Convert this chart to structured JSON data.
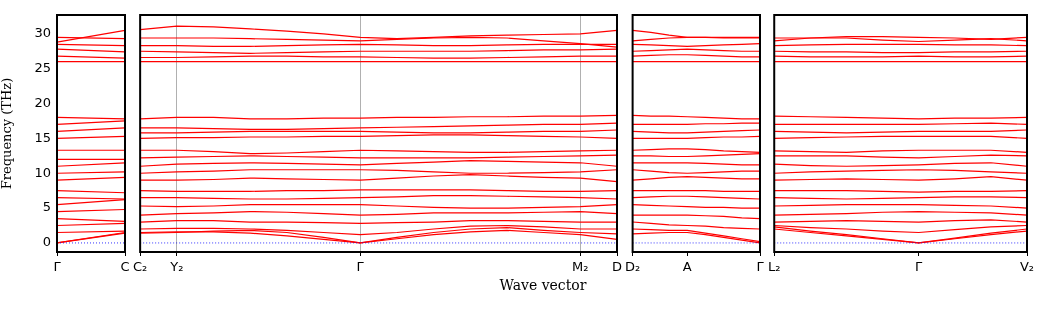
{
  "chart_data": [
    {
      "type": "line",
      "ylabel": "Frequency (THz)",
      "ylim": [
        -1.3,
        32.7
      ],
      "yticks": [
        0,
        5,
        10,
        15,
        20,
        25,
        30
      ],
      "ref_lines": [
        {
          "axis": "y",
          "value": 0,
          "color": "#0000ff",
          "line_style": "dotted"
        }
      ],
      "categories": [
        "Γ",
        "C"
      ],
      "series": [
        {
          "color": "#ff0000",
          "values": [
            0,
            1.5
          ]
        },
        {
          "color": "#ff0000",
          "values": [
            0,
            1.4
          ]
        },
        {
          "color": "#ff0000",
          "values": [
            1.5,
            1.7
          ]
        },
        {
          "color": "#ff0000",
          "values": [
            2.5,
            2.8
          ]
        },
        {
          "color": "#ff0000",
          "values": [
            3.5,
            3.1
          ]
        },
        {
          "color": "#ff0000",
          "values": [
            4.5,
            4.8
          ]
        },
        {
          "color": "#ff0000",
          "values": [
            5.5,
            6.2
          ]
        },
        {
          "color": "#ff0000",
          "values": [
            6.5,
            6.3
          ]
        },
        {
          "color": "#ff0000",
          "values": [
            7.5,
            7.2
          ]
        },
        {
          "color": "#ff0000",
          "values": [
            9.0,
            9.4
          ]
        },
        {
          "color": "#ff0000",
          "values": [
            10.0,
            10.2
          ]
        },
        {
          "color": "#ff0000",
          "values": [
            11.0,
            11.5
          ]
        },
        {
          "color": "#ff0000",
          "values": [
            12.0,
            12.0
          ]
        },
        {
          "color": "#ff0000",
          "values": [
            13.3,
            13.3
          ]
        },
        {
          "color": "#ff0000",
          "values": [
            15.0,
            15.3
          ]
        },
        {
          "color": "#ff0000",
          "values": [
            16.0,
            16.5
          ]
        },
        {
          "color": "#ff0000",
          "values": [
            17.0,
            17.5
          ]
        },
        {
          "color": "#ff0000",
          "values": [
            18.0,
            17.8
          ]
        },
        {
          "color": "#ff0000",
          "values": [
            26.0,
            26.0
          ]
        },
        {
          "color": "#ff0000",
          "values": [
            26.8,
            26.5
          ]
        },
        {
          "color": "#ff0000",
          "values": [
            27.8,
            27.4
          ]
        },
        {
          "color": "#ff0000",
          "values": [
            28.5,
            28.3
          ]
        },
        {
          "color": "#ff0000",
          "values": [
            29.5,
            29.3
          ]
        },
        {
          "color": "#ff0000",
          "values": [
            28.8,
            30.5
          ]
        }
      ]
    },
    {
      "type": "line",
      "xlabel": "Wave vector",
      "ylim": [
        -1.3,
        32.7
      ],
      "yticks": [
        0,
        5,
        10,
        15,
        20,
        25,
        30
      ],
      "tick_labels": "x",
      "grid": "x",
      "ref_lines": [
        {
          "axis": "y",
          "value": 0,
          "color": "#0000ff",
          "line_style": "dotted"
        }
      ],
      "categories": [
        "C₂",
        "Y₂",
        null,
        null,
        null,
        null,
        "Γ",
        null,
        null,
        null,
        null,
        null,
        "M₂",
        "D"
      ],
      "series": [
        {
          "color": "#ff0000",
          "values": [
            1.5,
            1.6,
            1.6,
            1.4,
            1.0,
            0.5,
            0,
            0.6,
            1.2,
            1.6,
            1.8,
            1.5,
            1.2,
            0.5
          ]
        },
        {
          "color": "#ff0000",
          "values": [
            1.4,
            1.5,
            1.7,
            1.8,
            1.5,
            0.8,
            0,
            0.8,
            1.5,
            2.0,
            2.2,
            1.8,
            1.5,
            1.3
          ]
        },
        {
          "color": "#ff0000",
          "values": [
            2.0,
            2.1,
            2.1,
            2.0,
            1.8,
            1.5,
            1.2,
            1.5,
            2.0,
            2.4,
            2.5,
            2.3,
            2.0,
            2.0
          ]
        },
        {
          "color": "#ff0000",
          "values": [
            3.0,
            3.2,
            3.2,
            3.0,
            3.0,
            2.9,
            2.8,
            2.9,
            3.0,
            3.2,
            3.2,
            3.1,
            3.0,
            3.0
          ]
        },
        {
          "color": "#ff0000",
          "values": [
            4.0,
            4.2,
            4.3,
            4.5,
            4.4,
            4.2,
            4.0,
            4.1,
            4.3,
            4.3,
            4.3,
            4.4,
            4.5,
            4.2
          ]
        },
        {
          "color": "#ff0000",
          "values": [
            5.3,
            5.2,
            5.3,
            5.5,
            5.5,
            5.5,
            5.5,
            5.3,
            5.1,
            5.0,
            5.0,
            5.1,
            5.2,
            5.5
          ]
        },
        {
          "color": "#ff0000",
          "values": [
            6.5,
            6.5,
            6.4,
            6.3,
            6.3,
            6.4,
            6.5,
            6.6,
            6.8,
            6.8,
            6.7,
            6.6,
            6.5,
            6.3
          ]
        },
        {
          "color": "#ff0000",
          "values": [
            7.5,
            7.4,
            7.4,
            7.4,
            7.5,
            7.5,
            7.6,
            7.6,
            7.6,
            7.6,
            7.5,
            7.4,
            7.4,
            7.5
          ]
        },
        {
          "color": "#ff0000",
          "values": [
            9.0,
            9.0,
            9.1,
            9.3,
            9.2,
            9.1,
            9.0,
            9.3,
            9.6,
            9.8,
            9.6,
            9.4,
            9.3,
            8.8
          ]
        },
        {
          "color": "#ff0000",
          "values": [
            10.0,
            10.2,
            10.3,
            10.5,
            10.5,
            10.5,
            10.5,
            10.4,
            10.2,
            10.0,
            10.0,
            10.1,
            10.2,
            10.5
          ]
        },
        {
          "color": "#ff0000",
          "values": [
            11.0,
            11.3,
            11.4,
            11.5,
            11.4,
            11.3,
            11.2,
            11.4,
            11.6,
            11.8,
            11.7,
            11.6,
            11.5,
            11.0
          ]
        },
        {
          "color": "#ff0000",
          "values": [
            12.2,
            12.3,
            12.4,
            12.5,
            12.4,
            12.3,
            12.2,
            12.2,
            12.2,
            12.2,
            12.3,
            12.4,
            12.5,
            12.6
          ]
        },
        {
          "color": "#ff0000",
          "values": [
            13.3,
            13.3,
            13.1,
            12.8,
            12.9,
            13.1,
            13.3,
            13.2,
            13.1,
            13.0,
            13.0,
            13.1,
            13.2,
            13.3
          ]
        },
        {
          "color": "#ff0000",
          "values": [
            15.0,
            15.1,
            15.1,
            15.2,
            15.2,
            15.3,
            15.3,
            15.4,
            15.5,
            15.5,
            15.4,
            15.3,
            15.2,
            15.0
          ]
        },
        {
          "color": "#ff0000",
          "values": [
            15.8,
            15.8,
            15.9,
            16.0,
            16.0,
            16.0,
            16.0,
            15.9,
            15.8,
            15.8,
            15.9,
            16.0,
            16.0,
            16.2
          ]
        },
        {
          "color": "#ff0000",
          "values": [
            16.5,
            16.5,
            16.4,
            16.3,
            16.3,
            16.4,
            16.5,
            16.6,
            16.7,
            16.8,
            16.9,
            17.0,
            17.0,
            17.2
          ]
        },
        {
          "color": "#ff0000",
          "values": [
            17.8,
            18.0,
            18.0,
            17.8,
            17.8,
            17.9,
            17.9,
            18.0,
            18.0,
            18.1,
            18.1,
            18.2,
            18.2,
            18.3
          ]
        },
        {
          "color": "#ff0000",
          "values": [
            26.0,
            26.0,
            26.0,
            26.0,
            26.0,
            26.0,
            26.0,
            26.0,
            26.0,
            26.0,
            26.0,
            26.0,
            26.0,
            26.0
          ]
        },
        {
          "color": "#ff0000",
          "values": [
            26.6,
            26.6,
            26.7,
            26.8,
            26.8,
            26.7,
            26.7,
            26.6,
            26.5,
            26.5,
            26.6,
            26.7,
            26.8,
            26.8
          ]
        },
        {
          "color": "#ff0000",
          "values": [
            27.5,
            27.4,
            27.3,
            27.2,
            27.3,
            27.4,
            27.5,
            27.5,
            27.5,
            27.5,
            27.6,
            27.7,
            27.7,
            27.8
          ]
        },
        {
          "color": "#ff0000",
          "values": [
            28.3,
            28.3,
            28.2,
            28.2,
            28.3,
            28.4,
            28.5,
            28.4,
            28.3,
            28.3,
            28.4,
            28.5,
            28.5,
            28.5
          ]
        },
        {
          "color": "#ff0000",
          "values": [
            29.4,
            29.4,
            29.4,
            29.3,
            29.2,
            29.1,
            29.0,
            29.2,
            29.4,
            29.5,
            29.4,
            29.0,
            28.6,
            28.1
          ]
        },
        {
          "color": "#ff0000",
          "values": [
            30.6,
            31.1,
            31.0,
            30.7,
            30.4,
            30.0,
            29.5,
            29.3,
            29.5,
            29.7,
            29.8,
            29.9,
            30.0,
            30.5
          ]
        }
      ]
    },
    {
      "type": "line",
      "ylim": [
        -1.3,
        32.7
      ],
      "yticks": [
        0,
        5,
        10,
        15,
        20,
        25,
        30
      ],
      "tick_labels": "x",
      "ref_lines": [
        {
          "axis": "y",
          "value": 0,
          "color": "#0000ff",
          "line_style": "dotted"
        }
      ],
      "categories": [
        "D₂",
        null,
        null,
        "A",
        null,
        null,
        null,
        "Γ"
      ],
      "series": [
        {
          "color": "#ff0000",
          "values": [
            1.3,
            1.4,
            1.5,
            1.5,
            1.2,
            0.8,
            0.4,
            0
          ]
        },
        {
          "color": "#ff0000",
          "values": [
            2.0,
            1.9,
            1.8,
            1.8,
            1.4,
            1.0,
            0.6,
            0.2
          ]
        },
        {
          "color": "#ff0000",
          "values": [
            3.0,
            2.8,
            2.6,
            2.5,
            2.4,
            2.2,
            2.1,
            2.0
          ]
        },
        {
          "color": "#ff0000",
          "values": [
            4.0,
            4.0,
            4.0,
            4.0,
            3.9,
            3.8,
            3.6,
            3.5
          ]
        },
        {
          "color": "#ff0000",
          "values": [
            5.5,
            5.4,
            5.3,
            5.2,
            5.1,
            5.1,
            5.0,
            5.0
          ]
        },
        {
          "color": "#ff0000",
          "values": [
            6.5,
            6.6,
            6.7,
            6.7,
            6.6,
            6.5,
            6.4,
            6.3
          ]
        },
        {
          "color": "#ff0000",
          "values": [
            7.5,
            7.5,
            7.5,
            7.5,
            7.5,
            7.4,
            7.4,
            7.4
          ]
        },
        {
          "color": "#ff0000",
          "values": [
            9.0,
            9.2,
            9.4,
            9.5,
            9.4,
            9.3,
            9.2,
            9.2
          ]
        },
        {
          "color": "#ff0000",
          "values": [
            10.5,
            10.3,
            10.1,
            10.0,
            10.1,
            10.2,
            10.3,
            10.3
          ]
        },
        {
          "color": "#ff0000",
          "values": [
            11.5,
            11.5,
            11.5,
            11.5,
            11.4,
            11.3,
            11.2,
            11.2
          ]
        },
        {
          "color": "#ff0000",
          "values": [
            12.5,
            12.5,
            12.4,
            12.4,
            12.5,
            12.6,
            12.7,
            12.8
          ]
        },
        {
          "color": "#ff0000",
          "values": [
            13.3,
            13.4,
            13.5,
            13.5,
            13.4,
            13.2,
            13.1,
            13.0
          ]
        },
        {
          "color": "#ff0000",
          "values": [
            15.0,
            15.0,
            15.0,
            15.0,
            15.1,
            15.2,
            15.2,
            15.3
          ]
        },
        {
          "color": "#ff0000",
          "values": [
            16.0,
            15.9,
            15.8,
            15.8,
            15.9,
            16.0,
            16.1,
            16.2
          ]
        },
        {
          "color": "#ff0000",
          "values": [
            17.0,
            17.0,
            17.0,
            17.0,
            17.1,
            17.1,
            17.2,
            17.2
          ]
        },
        {
          "color": "#ff0000",
          "values": [
            18.3,
            18.2,
            18.2,
            18.1,
            18.0,
            17.9,
            17.8,
            17.8
          ]
        },
        {
          "color": "#ff0000",
          "values": [
            26.0,
            26.0,
            26.0,
            26.0,
            26.0,
            26.0,
            26.0,
            26.0
          ]
        },
        {
          "color": "#ff0000",
          "values": [
            26.8,
            26.9,
            27.0,
            27.0,
            26.9,
            26.8,
            26.7,
            26.7
          ]
        },
        {
          "color": "#ff0000",
          "values": [
            27.5,
            27.6,
            27.7,
            27.8,
            27.7,
            27.6,
            27.5,
            27.5
          ]
        },
        {
          "color": "#ff0000",
          "values": [
            28.5,
            28.4,
            28.3,
            28.2,
            28.3,
            28.4,
            28.5,
            28.6
          ]
        },
        {
          "color": "#ff0000",
          "values": [
            29.0,
            29.2,
            29.4,
            29.5,
            29.5,
            29.4,
            29.4,
            29.4
          ]
        },
        {
          "color": "#ff0000",
          "values": [
            30.5,
            30.2,
            29.8,
            29.5,
            29.5,
            29.5,
            29.5,
            29.5
          ]
        }
      ]
    },
    {
      "type": "line",
      "ylim": [
        -1.3,
        32.7
      ],
      "yticks": [
        0,
        5,
        10,
        15,
        20,
        25,
        30
      ],
      "tick_labels": "x",
      "ref_lines": [
        {
          "axis": "y",
          "value": 0,
          "color": "#0000ff",
          "line_style": "dotted"
        }
      ],
      "categories": [
        "L₂",
        null,
        null,
        null,
        "Γ",
        null,
        null,
        "V₂"
      ],
      "series": [
        {
          "color": "#ff0000",
          "values": [
            2.0,
            1.5,
            1.0,
            0.5,
            0,
            0.6,
            1.2,
            1.7
          ]
        },
        {
          "color": "#ff0000",
          "values": [
            2.3,
            1.7,
            1.2,
            0.6,
            0,
            0.7,
            1.4,
            2.0
          ]
        },
        {
          "color": "#ff0000",
          "values": [
            2.5,
            2.2,
            2.0,
            1.7,
            1.5,
            1.9,
            2.3,
            2.5
          ]
        },
        {
          "color": "#ff0000",
          "values": [
            3.0,
            3.1,
            3.2,
            3.1,
            3.0,
            3.2,
            3.3,
            3.0
          ]
        },
        {
          "color": "#ff0000",
          "values": [
            4.0,
            4.1,
            4.2,
            4.4,
            4.5,
            4.4,
            4.3,
            4.0
          ]
        },
        {
          "color": "#ff0000",
          "values": [
            5.3,
            5.4,
            5.5,
            5.5,
            5.5,
            5.4,
            5.3,
            5.0
          ]
        },
        {
          "color": "#ff0000",
          "values": [
            6.5,
            6.4,
            6.3,
            6.4,
            6.5,
            6.6,
            6.6,
            6.5
          ]
        },
        {
          "color": "#ff0000",
          "values": [
            7.5,
            7.5,
            7.5,
            7.4,
            7.3,
            7.4,
            7.4,
            7.5
          ]
        },
        {
          "color": "#ff0000",
          "values": [
            9.0,
            9.1,
            9.2,
            9.1,
            9.0,
            9.2,
            9.5,
            9.0
          ]
        },
        {
          "color": "#ff0000",
          "values": [
            10.0,
            10.2,
            10.3,
            10.4,
            10.5,
            10.4,
            10.2,
            10.0
          ]
        },
        {
          "color": "#ff0000",
          "values": [
            11.3,
            11.1,
            11.0,
            11.1,
            11.2,
            11.4,
            11.5,
            11.0
          ]
        },
        {
          "color": "#ff0000",
          "values": [
            12.5,
            12.5,
            12.5,
            12.3,
            12.2,
            12.4,
            12.6,
            12.5
          ]
        },
        {
          "color": "#ff0000",
          "values": [
            13.2,
            13.1,
            13.0,
            13.2,
            13.3,
            13.3,
            13.3,
            13.0
          ]
        },
        {
          "color": "#ff0000",
          "values": [
            15.0,
            15.1,
            15.2,
            15.3,
            15.3,
            15.3,
            15.3,
            15.0
          ]
        },
        {
          "color": "#ff0000",
          "values": [
            16.0,
            15.9,
            15.8,
            15.9,
            16.0,
            16.0,
            16.0,
            16.2
          ]
        },
        {
          "color": "#ff0000",
          "values": [
            17.0,
            17.0,
            17.0,
            17.0,
            17.0,
            17.1,
            17.2,
            17.0
          ]
        },
        {
          "color": "#ff0000",
          "values": [
            18.2,
            18.1,
            18.0,
            17.9,
            17.8,
            17.9,
            17.9,
            18.0
          ]
        },
        {
          "color": "#ff0000",
          "values": [
            26.0,
            26.0,
            26.0,
            26.0,
            26.0,
            26.0,
            26.0,
            26.0
          ]
        },
        {
          "color": "#ff0000",
          "values": [
            26.8,
            26.7,
            26.7,
            26.7,
            26.8,
            26.7,
            26.7,
            26.8
          ]
        },
        {
          "color": "#ff0000",
          "values": [
            27.5,
            27.4,
            27.4,
            27.3,
            27.3,
            27.4,
            27.4,
            27.5
          ]
        },
        {
          "color": "#ff0000",
          "values": [
            28.3,
            28.4,
            28.5,
            28.5,
            28.5,
            28.4,
            28.4,
            28.3
          ]
        },
        {
          "color": "#ff0000",
          "values": [
            29.4,
            29.4,
            29.4,
            29.1,
            28.9,
            29.1,
            29.3,
            29.0
          ]
        },
        {
          "color": "#ff0000",
          "values": [
            29.0,
            29.4,
            29.6,
            29.6,
            29.5,
            29.4,
            29.2,
            29.5
          ]
        }
      ]
    }
  ]
}
